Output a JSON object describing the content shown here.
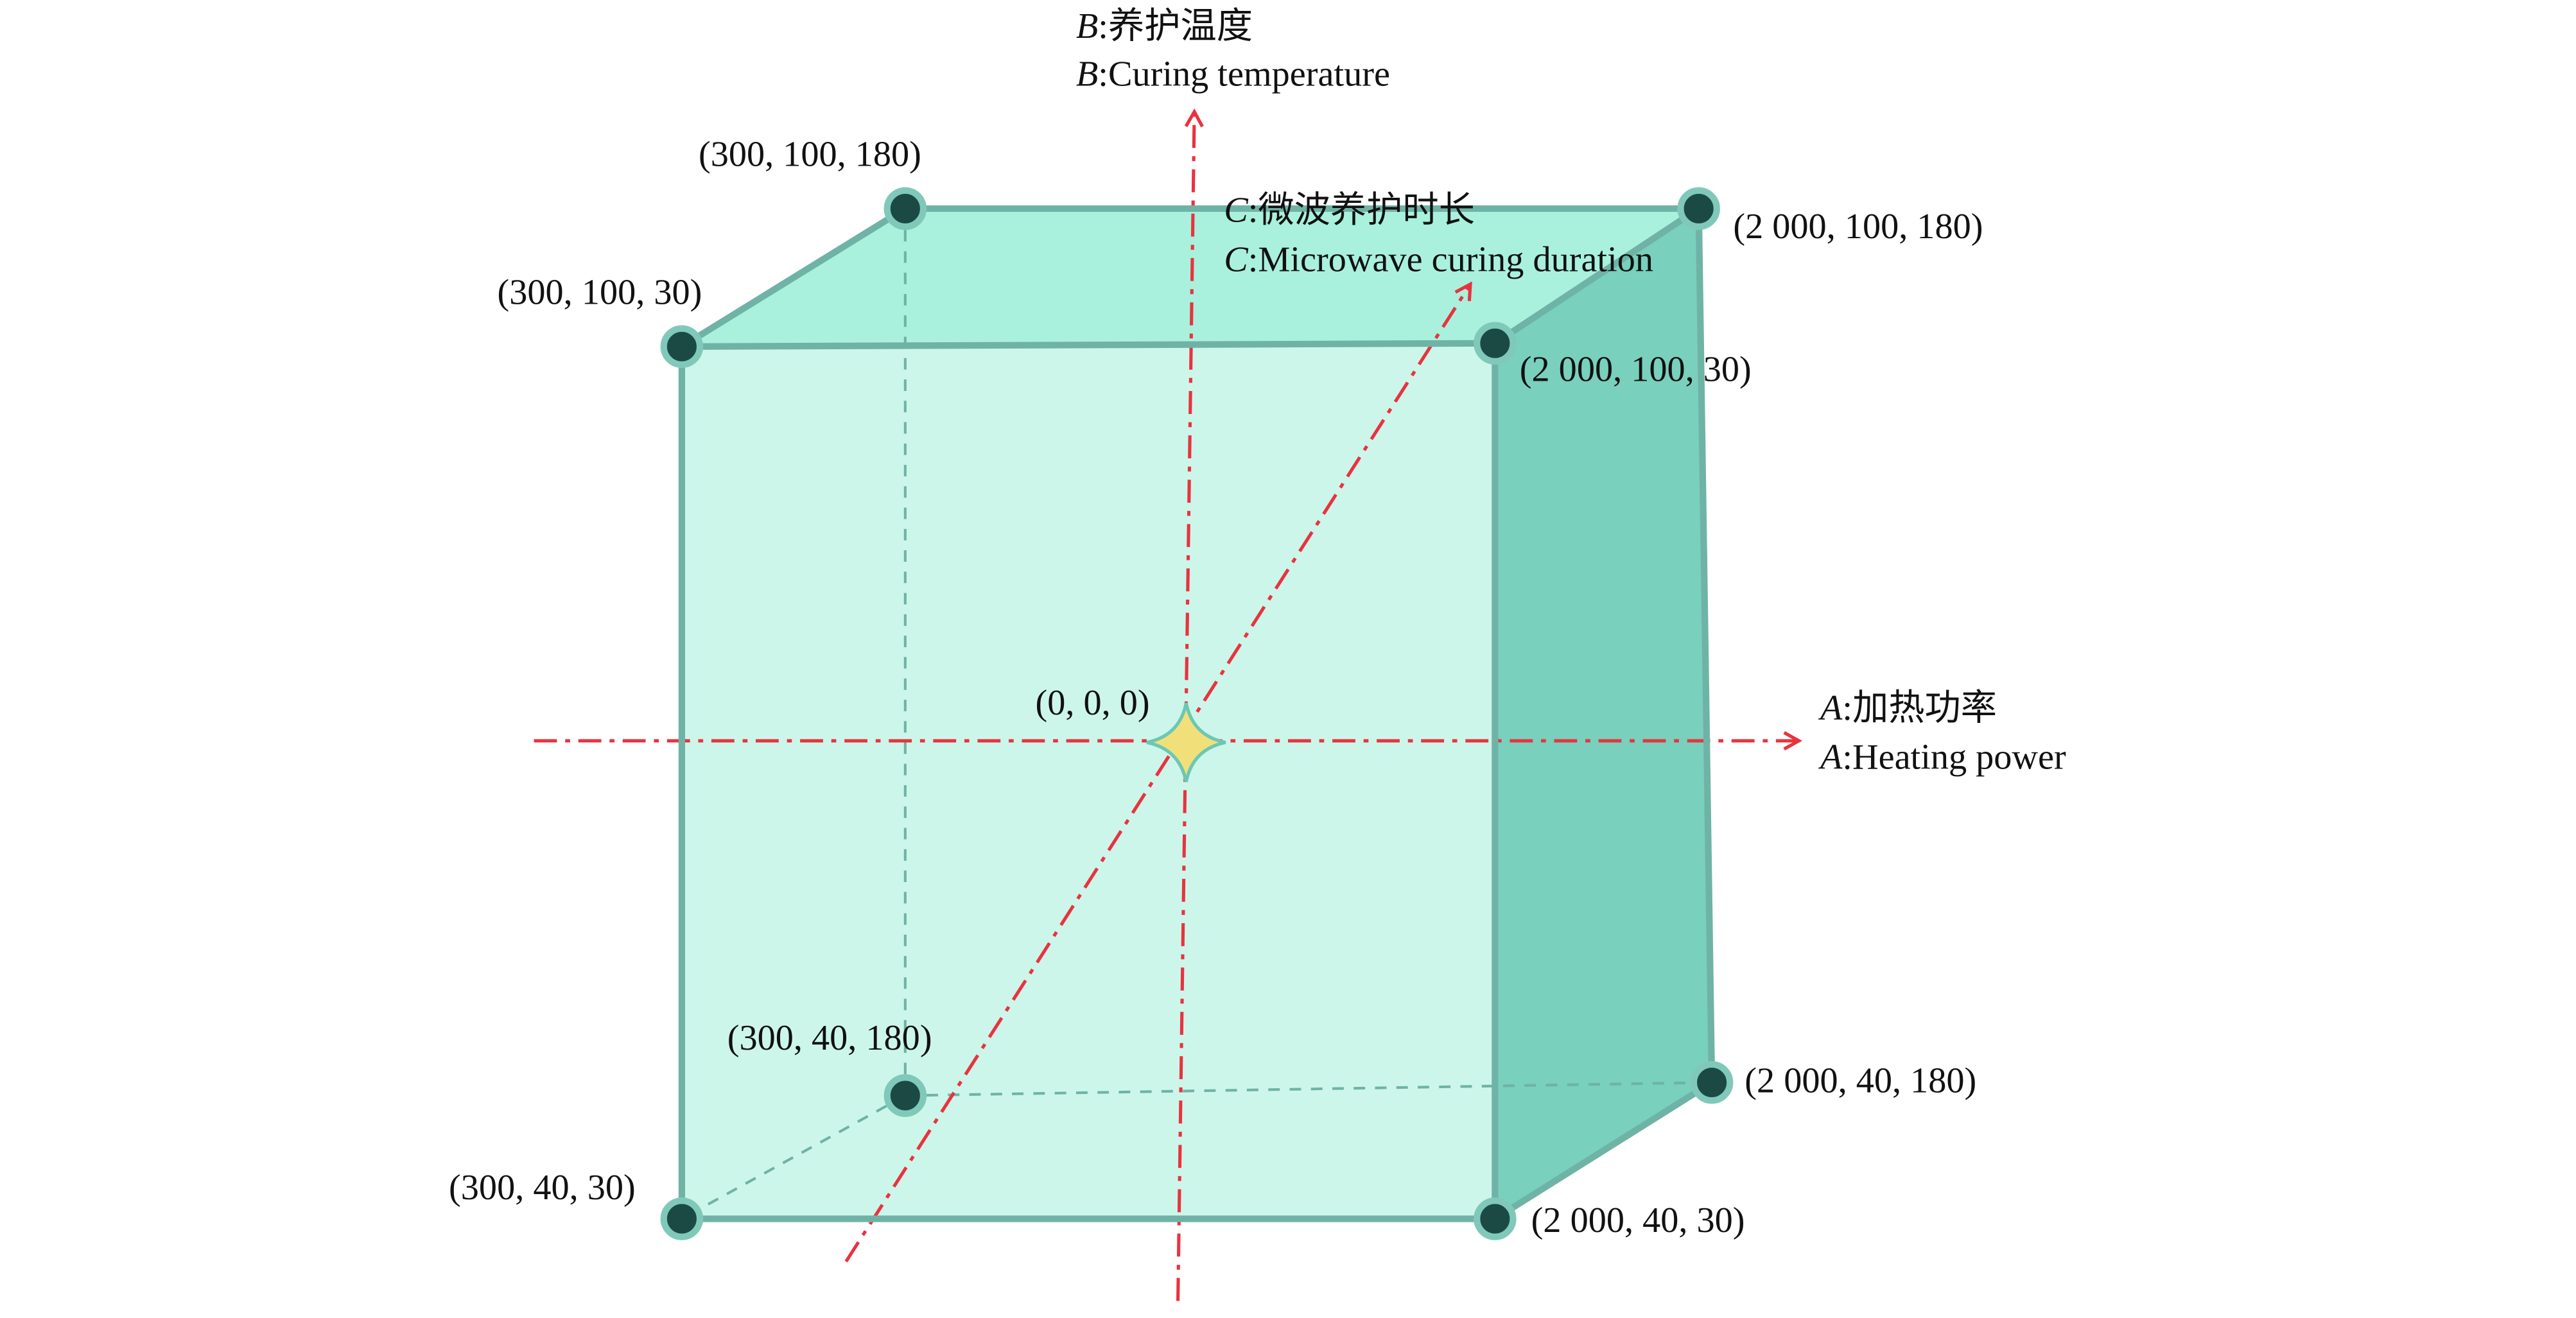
{
  "axes": {
    "b": {
      "var": "B",
      "label_zh": ":养护温度",
      "label_en": ":Curing temperature"
    },
    "c": {
      "var": "C",
      "label_zh": ":微波养护时长",
      "label_en": ":Microwave curing duration"
    },
    "a": {
      "var": "A",
      "label_zh": ":加热功率",
      "label_en": ":Heating power"
    }
  },
  "origin": {
    "label": "(0, 0, 0)"
  },
  "vertices": [
    {
      "label": "(300, 100, 180)"
    },
    {
      "label": "(300, 100, 30)"
    },
    {
      "label": "(2 000, 100, 180)"
    },
    {
      "label": "(2 000, 100, 30)"
    },
    {
      "label": "(300, 40, 180)"
    },
    {
      "label": "(2 000, 40, 180)"
    },
    {
      "label": "(300, 40, 30)"
    },
    {
      "label": "(2 000, 40, 30)"
    }
  ]
}
